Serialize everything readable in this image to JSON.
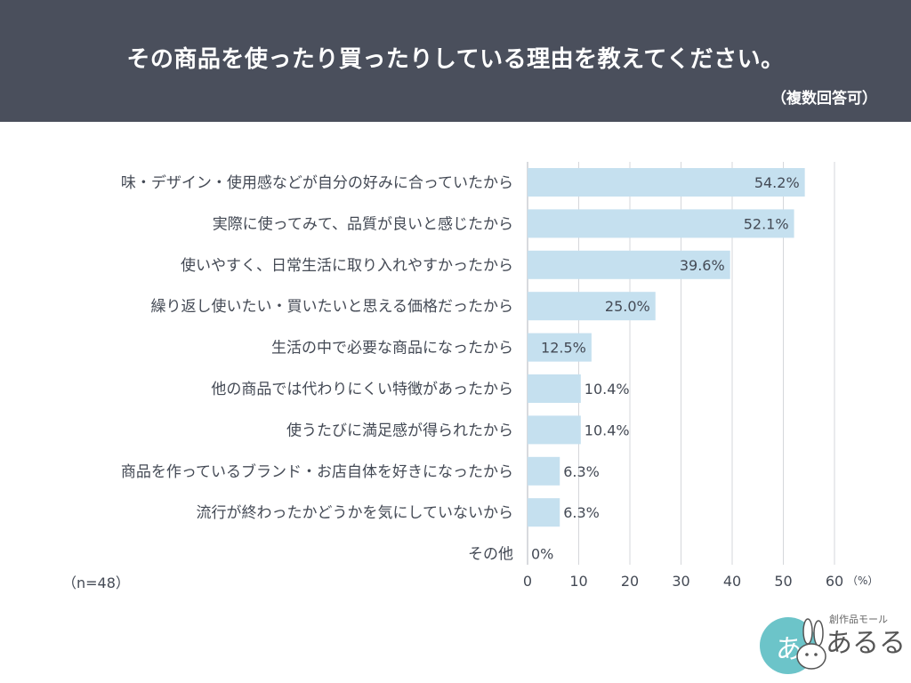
{
  "header": {
    "title": "その商品を使ったり買ったりしている理由を教えてください。",
    "subtitle": "（複数回答可）"
  },
  "sample_size": "（n=48）",
  "logo": {
    "small_text": "創作品モール",
    "big_text": "あるる",
    "badge_text": "あ"
  },
  "colors": {
    "header_bg": "#4a4f5c",
    "bar": "#c5e0ef",
    "grid": "#d5d7db",
    "text": "#444a55"
  },
  "chart_data": {
    "type": "bar",
    "orientation": "horizontal",
    "categories": [
      "味・デザイン・使用感などが自分の好みに合っていたから",
      "実際に使ってみて、品質が良いと感じたから",
      "使いやすく、日常生活に取り入れやすかったから",
      "繰り返し使いたい・買いたいと思える価格だったから",
      "生活の中で必要な商品になったから",
      "他の商品では代わりにくい特徴があったから",
      "使うたびに満足感が得られたから",
      "商品を作っているブランド・お店自体を好きになったから",
      "流行が終わったかどうかを気にしていないから",
      "その他"
    ],
    "values": [
      54.2,
      52.1,
      39.6,
      25.0,
      12.5,
      10.4,
      10.4,
      6.3,
      6.3,
      0
    ],
    "value_labels": [
      "54.2%",
      "52.1%",
      "39.6%",
      "25.0%",
      "12.5%",
      "10.4%",
      "10.4%",
      "6.3%",
      "6.3%",
      "0%"
    ],
    "xlim": [
      0,
      60
    ],
    "xticks": [
      "0",
      "10",
      "20",
      "30",
      "40",
      "50",
      "60"
    ],
    "xunit": "（%）",
    "grid": true
  }
}
